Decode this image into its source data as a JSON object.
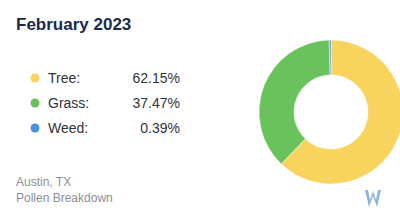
{
  "chart_data": {
    "type": "pie",
    "title": "February 2023",
    "categories": [
      "Tree:",
      "Grass:",
      "Weed:"
    ],
    "values": [
      62.15,
      37.47,
      0.39
    ],
    "value_labels": [
      "62.15%",
      "37.47%",
      "0.39%"
    ],
    "colors": [
      "#f8d35e",
      "#69c25b",
      "#4a90e2"
    ],
    "annotations": [
      "Austin, TX",
      "Pollen Breakdown"
    ],
    "legend": "left"
  }
}
